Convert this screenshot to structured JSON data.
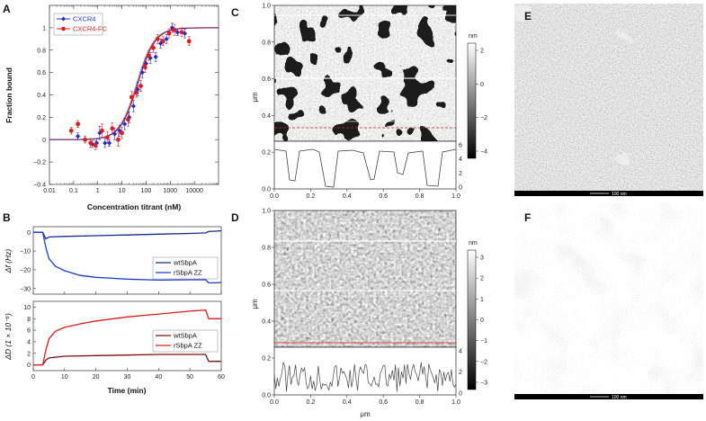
{
  "panels": {
    "A": {
      "letter": "A",
      "chart_data": {
        "type": "scatter",
        "xlabel": "Concentration titrant (nM)",
        "ylabel": "Fraction bound",
        "xscale": "log",
        "xlim": [
          0.01,
          100000
        ],
        "ylim": [
          -0.4,
          1.2
        ],
        "x_ticks": [
          "0.01",
          "0.1",
          "1",
          "10",
          "100",
          "1000",
          "10000"
        ],
        "y_ticks": [
          "−0.4",
          "−0.2",
          "0",
          "0.2",
          "0.4",
          "0.6",
          "0.8",
          "1"
        ],
        "legend_position": "top-left",
        "series": [
          {
            "name": "CXCR4",
            "color": "#1f2ec9",
            "x": [
              0.15,
              0.6,
              0.9,
              1.2,
              2.0,
              3.0,
              5.0,
              8.0,
              13,
              20,
              30,
              45,
              70,
              100,
              150,
              250,
              400,
              700,
              1200,
              2000,
              4000
            ],
            "y": [
              0.03,
              -0.04,
              -0.03,
              0.06,
              -0.03,
              -0.03,
              0.05,
              0.08,
              0.14,
              0.2,
              0.3,
              0.45,
              0.6,
              0.68,
              0.73,
              0.74,
              0.86,
              0.9,
              1.0,
              0.96,
              0.95
            ],
            "err": [
              0.03,
              0.03,
              0.04,
              0.06,
              0.04,
              0.03,
              0.05,
              0.05,
              0.05,
              0.05,
              0.05,
              0.06,
              0.05,
              0.05,
              0.05,
              0.04,
              0.04,
              0.04,
              0.04,
              0.03,
              0.04
            ]
          },
          {
            "name": "CXCR4-FC",
            "color": "#e01b1b",
            "x": [
              0.08,
              0.15,
              0.3,
              0.5,
              0.8,
              1.5,
              2.5,
              4.0,
              7.0,
              10,
              18,
              25,
              40,
              60,
              90,
              130,
              200,
              300,
              500,
              900,
              1500,
              3000,
              6000
            ],
            "y": [
              0.08,
              0.14,
              0.0,
              -0.03,
              -0.05,
              0.08,
              0.02,
              0.1,
              0.0,
              0.06,
              0.18,
              0.38,
              0.42,
              0.48,
              0.65,
              0.75,
              0.82,
              0.9,
              0.88,
              0.95,
              0.98,
              0.96,
              0.88
            ],
            "err": [
              0.03,
              0.03,
              0.03,
              0.04,
              0.04,
              0.06,
              0.05,
              0.05,
              0.06,
              0.05,
              0.06,
              0.05,
              0.04,
              0.05,
              0.05,
              0.04,
              0.04,
              0.04,
              0.04,
              0.04,
              0.05,
              0.04,
              0.04
            ]
          }
        ],
        "fit": {
          "color": "#c41515",
          "kd_nM": 45,
          "hill": 1.2,
          "bottom": 0.0,
          "top": 1.0
        }
      }
    },
    "B": {
      "letter": "B",
      "top": {
        "chart_data": {
          "type": "line",
          "ylabel": "Δf (Hz)",
          "xlim": [
            0,
            60
          ],
          "ylim": [
            -33,
            3
          ],
          "y_ticks": [
            "0",
            "−10",
            "−20",
            "−30"
          ],
          "legend_position": "bottom-right",
          "series": [
            {
              "name": "wtSbpA",
              "color": "#152b8a",
              "x": [
                0,
                3,
                4,
                5,
                10,
                20,
                30,
                40,
                50,
                55,
                56,
                60
              ],
              "y": [
                0,
                0,
                -3.5,
                -2.5,
                -2.2,
                -1.8,
                -1.4,
                -1.0,
                -0.6,
                -0.3,
                0.4,
                0.8
              ]
            },
            {
              "name": "rSbpA ZZ",
              "color": "#1a3ad8",
              "x": [
                0,
                3,
                4,
                5,
                7,
                10,
                15,
                20,
                30,
                40,
                50,
                55,
                56,
                60
              ],
              "y": [
                0,
                0,
                -8,
                -14,
                -18,
                -20.5,
                -23,
                -24,
                -25,
                -25.5,
                -25.3,
                -25.2,
                -27,
                -26.8
              ]
            }
          ]
        }
      },
      "bottom": {
        "chart_data": {
          "type": "line",
          "ylabel": "ΔD (1 × 10⁻⁶)",
          "xlabel": "Time (min)",
          "xlim": [
            0,
            60
          ],
          "ylim": [
            -1,
            11
          ],
          "x_ticks": [
            "0",
            "10",
            "20",
            "30",
            "40",
            "50",
            "60"
          ],
          "y_ticks": [
            "0",
            "2",
            "4",
            "6",
            "8",
            "10"
          ],
          "legend_position": "bottom-right",
          "series": [
            {
              "name": "wtSbpA",
              "color": "#7a1010",
              "x": [
                0,
                3,
                4,
                5,
                10,
                20,
                30,
                40,
                50,
                55,
                56,
                60
              ],
              "y": [
                0,
                0,
                0.8,
                1.2,
                1.5,
                1.6,
                1.7,
                1.8,
                1.8,
                1.8,
                0.6,
                0.6
              ]
            },
            {
              "name": "rSbpA ZZ",
              "color": "#e01b1b",
              "x": [
                0,
                3,
                4,
                5,
                7,
                10,
                15,
                20,
                30,
                40,
                50,
                55,
                56,
                60
              ],
              "y": [
                0,
                0,
                2.5,
                4.5,
                5.8,
                6.5,
                7.1,
                7.6,
                8.3,
                8.8,
                9.3,
                9.5,
                8.0,
                8.0
              ]
            }
          ]
        }
      }
    },
    "C": {
      "letter": "C",
      "y_axis_label": "μm",
      "y_ticks": [
        "1.0",
        "0.8",
        "0.6",
        "0.4",
        "0.2",
        "0.0"
      ],
      "x_ticks": [
        "0.0",
        "0.2",
        "0.4",
        "0.6",
        "0.8",
        "1.0"
      ],
      "colorbar_unit": "nm",
      "colorbar_ticks": [
        "2",
        "0",
        "−2",
        "−4"
      ],
      "profile_ticks": [
        "6",
        "4",
        "2",
        "0"
      ]
    },
    "D": {
      "letter": "D",
      "y_axis_label": "μm",
      "x_axis_label": "μm",
      "y_ticks": [
        "1.0",
        "0.8",
        "0.6",
        "0.4",
        "0.2",
        "0.0"
      ],
      "x_ticks": [
        "0.0",
        "0.2",
        "0.4",
        "0.6",
        "0.8",
        "1.0"
      ],
      "colorbar_unit": "nm",
      "colorbar_ticks": [
        "3",
        "2",
        "1",
        "0",
        "−1",
        "−2",
        "−3"
      ],
      "profile_ticks": [
        "4",
        "2",
        "0"
      ]
    },
    "E": {
      "letter": "E",
      "scale_bar": "100 nm"
    },
    "F": {
      "letter": "F",
      "scale_bar": "100 nm"
    }
  }
}
